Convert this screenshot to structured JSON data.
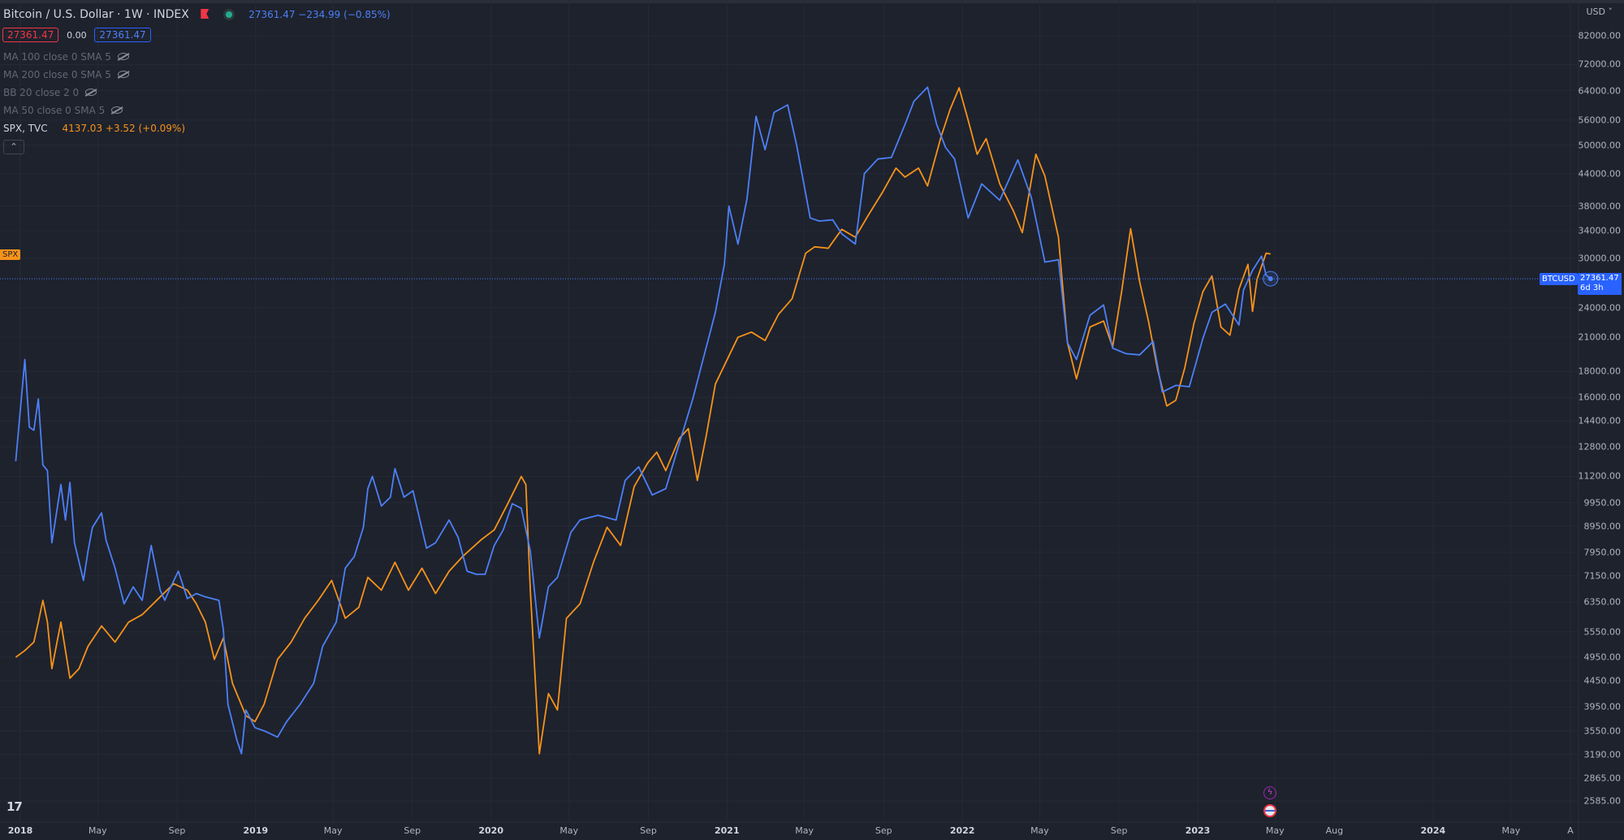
{
  "header": {
    "title": "Bitcoin / U.S. Dollar · 1W · INDEX",
    "price_change": "27361.47 −234.99 (−0.85%)",
    "bid": "27361.47",
    "spread": "0.00",
    "ask": "27361.47"
  },
  "indicators": [
    {
      "label": "MA 100 close 0 SMA 5"
    },
    {
      "label": "MA 200 close 0 SMA 5"
    },
    {
      "label": "BB 20 close 2 0"
    },
    {
      "label": "MA 50 close 0 SMA 5"
    }
  ],
  "compare": {
    "symbol": "SPX, TVC",
    "value": "4137.03 +3.52 (+0.09%)"
  },
  "collapse_glyph": "⌃",
  "currency": "USD",
  "tags": {
    "spx": "SPX",
    "btc_symbol": "BTCUSD",
    "btc_price": "27361.47",
    "btc_countdown": "6d 3h"
  },
  "logo": "17",
  "icons": {
    "bolt": "lightning-icon",
    "flag": "us-flag-icon"
  },
  "colors": {
    "background": "#1e222d",
    "btc": "#4c80f7",
    "spx": "#f7931a"
  },
  "chart_data": {
    "type": "line",
    "x_axis": {
      "ticks": [
        "2018",
        "May",
        "Sep",
        "2019",
        "May",
        "Sep",
        "2020",
        "May",
        "Sep",
        "2021",
        "May",
        "Sep",
        "2022",
        "May",
        "Sep",
        "2023",
        "May",
        "Aug",
        "2024",
        "May",
        "A"
      ]
    },
    "y_axis": {
      "scale": "log",
      "ticks": [
        82000,
        72000,
        64000,
        56000,
        50000,
        44000,
        38000,
        34000,
        30000,
        24000,
        21000,
        18000,
        16000,
        14400,
        12800,
        11200,
        9950,
        8950,
        7950,
        7150,
        6350,
        5550,
        4950,
        4450,
        3950,
        3550,
        3190,
        2865,
        2585
      ],
      "tick_labels": [
        "82000.00",
        "72000.00",
        "64000.00",
        "56000.00",
        "50000.00",
        "44000.00",
        "38000.00",
        "34000.00",
        "30000.00",
        "24000.00",
        "21000.00",
        "18000.00",
        "16000.00",
        "14400.00",
        "12800.00",
        "11200.00",
        "9950.00",
        "8950.00",
        "7950.00",
        "7150.00",
        "6350.00",
        "5550.00",
        "4950.00",
        "4450.00",
        "3950.00",
        "3550.00",
        "3190.00",
        "2865.00",
        "2585.00"
      ],
      "range": [
        2450,
        90000
      ],
      "position": "right"
    },
    "grid": true,
    "last_price": 27361.47,
    "series": [
      {
        "name": "BTCUSD",
        "color": "#4c80f7",
        "points": [
          [
            "2017-12-25",
            12000
          ],
          [
            "2018-01-08",
            19000
          ],
          [
            "2018-01-15",
            14000
          ],
          [
            "2018-01-22",
            13800
          ],
          [
            "2018-01-29",
            15900
          ],
          [
            "2018-02-05",
            11800
          ],
          [
            "2018-02-12",
            11500
          ],
          [
            "2018-02-19",
            8300
          ],
          [
            "2018-03-05",
            10800
          ],
          [
            "2018-03-12",
            9200
          ],
          [
            "2018-03-19",
            10900
          ],
          [
            "2018-03-26",
            8300
          ],
          [
            "2018-04-09",
            7000
          ],
          [
            "2018-04-16",
            8000
          ],
          [
            "2018-04-23",
            8900
          ],
          [
            "2018-05-07",
            9500
          ],
          [
            "2018-05-14",
            8400
          ],
          [
            "2018-05-28",
            7400
          ],
          [
            "2018-06-11",
            6300
          ],
          [
            "2018-06-25",
            6800
          ],
          [
            "2018-07-09",
            6400
          ],
          [
            "2018-07-23",
            8200
          ],
          [
            "2018-08-06",
            6700
          ],
          [
            "2018-08-13",
            6400
          ],
          [
            "2018-08-20",
            6700
          ],
          [
            "2018-09-03",
            7300
          ],
          [
            "2018-09-17",
            6450
          ],
          [
            "2018-10-01",
            6600
          ],
          [
            "2018-10-15",
            6500
          ],
          [
            "2018-11-05",
            6400
          ],
          [
            "2018-11-12",
            5600
          ],
          [
            "2018-11-19",
            4000
          ],
          [
            "2018-12-03",
            3400
          ],
          [
            "2018-12-10",
            3200
          ],
          [
            "2018-12-17",
            3900
          ],
          [
            "2018-12-31",
            3600
          ],
          [
            "2019-01-14",
            3550
          ],
          [
            "2019-02-04",
            3450
          ],
          [
            "2019-02-18",
            3700
          ],
          [
            "2019-03-11",
            4000
          ],
          [
            "2019-04-01",
            4400
          ],
          [
            "2019-04-15",
            5200
          ],
          [
            "2019-05-06",
            5800
          ],
          [
            "2019-05-20",
            7400
          ],
          [
            "2019-06-03",
            7800
          ],
          [
            "2019-06-17",
            8900
          ],
          [
            "2019-06-24",
            10600
          ],
          [
            "2019-07-01",
            11200
          ],
          [
            "2019-07-15",
            9800
          ],
          [
            "2019-07-29",
            10200
          ],
          [
            "2019-08-05",
            11600
          ],
          [
            "2019-08-19",
            10200
          ],
          [
            "2019-09-02",
            10500
          ],
          [
            "2019-09-23",
            8100
          ],
          [
            "2019-10-07",
            8300
          ],
          [
            "2019-10-28",
            9200
          ],
          [
            "2019-11-11",
            8500
          ],
          [
            "2019-11-25",
            7300
          ],
          [
            "2019-12-09",
            7200
          ],
          [
            "2019-12-23",
            7200
          ],
          [
            "2020-01-06",
            8200
          ],
          [
            "2020-01-20",
            8800
          ],
          [
            "2020-02-03",
            9900
          ],
          [
            "2020-02-17",
            9700
          ],
          [
            "2020-03-02",
            8000
          ],
          [
            "2020-03-16",
            5400
          ],
          [
            "2020-03-30",
            6800
          ],
          [
            "2020-04-13",
            7100
          ],
          [
            "2020-05-04",
            8700
          ],
          [
            "2020-05-18",
            9200
          ],
          [
            "2020-06-15",
            9400
          ],
          [
            "2020-07-13",
            9200
          ],
          [
            "2020-07-27",
            11000
          ],
          [
            "2020-08-17",
            11700
          ],
          [
            "2020-09-07",
            10300
          ],
          [
            "2020-09-28",
            10600
          ],
          [
            "2020-10-19",
            13000
          ],
          [
            "2020-11-09",
            15900
          ],
          [
            "2020-11-23",
            18600
          ],
          [
            "2020-12-14",
            23500
          ],
          [
            "2020-12-28",
            29200
          ],
          [
            "2021-01-04",
            38000
          ],
          [
            "2021-01-18",
            32000
          ],
          [
            "2021-02-01",
            39200
          ],
          [
            "2021-02-15",
            57000
          ],
          [
            "2021-03-01",
            49000
          ],
          [
            "2021-03-15",
            58000
          ],
          [
            "2021-04-05",
            60000
          ],
          [
            "2021-04-19",
            50000
          ],
          [
            "2021-05-10",
            36000
          ],
          [
            "2021-05-24",
            35500
          ],
          [
            "2021-06-14",
            35700
          ],
          [
            "2021-06-28",
            33500
          ],
          [
            "2021-07-19",
            32000
          ],
          [
            "2021-08-02",
            44000
          ],
          [
            "2021-08-23",
            47000
          ],
          [
            "2021-09-13",
            47300
          ],
          [
            "2021-10-04",
            54900
          ],
          [
            "2021-10-18",
            61000
          ],
          [
            "2021-11-08",
            65000
          ],
          [
            "2021-11-22",
            55000
          ],
          [
            "2021-12-06",
            49500
          ],
          [
            "2021-12-20",
            47000
          ],
          [
            "2022-01-10",
            36000
          ],
          [
            "2022-01-31",
            42000
          ],
          [
            "2022-02-28",
            39000
          ],
          [
            "2022-03-28",
            46800
          ],
          [
            "2022-04-18",
            39500
          ],
          [
            "2022-05-09",
            29500
          ],
          [
            "2022-05-30",
            29800
          ],
          [
            "2022-06-13",
            20500
          ],
          [
            "2022-06-27",
            19000
          ],
          [
            "2022-07-18",
            23200
          ],
          [
            "2022-08-08",
            24300
          ],
          [
            "2022-08-22",
            20000
          ],
          [
            "2022-09-12",
            19500
          ],
          [
            "2022-10-03",
            19400
          ],
          [
            "2022-10-24",
            20600
          ],
          [
            "2022-11-07",
            16400
          ],
          [
            "2022-11-28",
            16900
          ],
          [
            "2022-12-19",
            16800
          ],
          [
            "2023-01-09",
            20900
          ],
          [
            "2023-01-23",
            23500
          ],
          [
            "2023-02-13",
            24400
          ],
          [
            "2023-03-06",
            22200
          ],
          [
            "2023-03-13",
            26000
          ],
          [
            "2023-03-27",
            28400
          ],
          [
            "2023-04-10",
            30300
          ],
          [
            "2023-04-17",
            27800
          ],
          [
            "2023-04-24",
            27361
          ]
        ]
      },
      {
        "name": "SPX",
        "color": "#f7931a",
        "points": [
          [
            "2017-12-25",
            4950
          ],
          [
            "2018-01-08",
            5100
          ],
          [
            "2018-01-22",
            5300
          ],
          [
            "2018-01-29",
            5800
          ],
          [
            "2018-02-05",
            6400
          ],
          [
            "2018-02-12",
            5800
          ],
          [
            "2018-02-19",
            4700
          ],
          [
            "2018-03-05",
            5800
          ],
          [
            "2018-03-19",
            4500
          ],
          [
            "2018-04-02",
            4700
          ],
          [
            "2018-04-16",
            5200
          ],
          [
            "2018-05-07",
            5700
          ],
          [
            "2018-05-28",
            5300
          ],
          [
            "2018-06-18",
            5800
          ],
          [
            "2018-07-09",
            6000
          ],
          [
            "2018-08-06",
            6500
          ],
          [
            "2018-08-27",
            6900
          ],
          [
            "2018-09-17",
            6700
          ],
          [
            "2018-10-01",
            6300
          ],
          [
            "2018-10-15",
            5800
          ],
          [
            "2018-10-29",
            4900
          ],
          [
            "2018-11-12",
            5400
          ],
          [
            "2018-11-26",
            4400
          ],
          [
            "2018-12-17",
            3800
          ],
          [
            "2018-12-31",
            3700
          ],
          [
            "2019-01-14",
            4000
          ],
          [
            "2019-02-04",
            4900
          ],
          [
            "2019-02-25",
            5300
          ],
          [
            "2019-03-18",
            5900
          ],
          [
            "2019-04-08",
            6400
          ],
          [
            "2019-04-29",
            7000
          ],
          [
            "2019-05-20",
            5900
          ],
          [
            "2019-06-10",
            6200
          ],
          [
            "2019-06-24",
            7100
          ],
          [
            "2019-07-15",
            6700
          ],
          [
            "2019-08-05",
            7600
          ],
          [
            "2019-08-26",
            6700
          ],
          [
            "2019-09-16",
            7400
          ],
          [
            "2019-10-07",
            6600
          ],
          [
            "2019-10-28",
            7300
          ],
          [
            "2019-11-18",
            7800
          ],
          [
            "2019-12-16",
            8400
          ],
          [
            "2020-01-06",
            8800
          ],
          [
            "2020-01-27",
            9900
          ],
          [
            "2020-02-17",
            11200
          ],
          [
            "2020-02-24",
            10800
          ],
          [
            "2020-03-02",
            6700
          ],
          [
            "2020-03-16",
            3200
          ],
          [
            "2020-03-30",
            4200
          ],
          [
            "2020-04-13",
            3900
          ],
          [
            "2020-04-27",
            5900
          ],
          [
            "2020-05-18",
            6300
          ],
          [
            "2020-06-08",
            7600
          ],
          [
            "2020-06-29",
            8900
          ],
          [
            "2020-07-20",
            8200
          ],
          [
            "2020-08-10",
            10700
          ],
          [
            "2020-08-31",
            11900
          ],
          [
            "2020-09-14",
            12500
          ],
          [
            "2020-09-28",
            11500
          ],
          [
            "2020-10-19",
            13300
          ],
          [
            "2020-11-02",
            13900
          ],
          [
            "2020-11-16",
            11000
          ],
          [
            "2020-11-30",
            13500
          ],
          [
            "2020-12-14",
            17000
          ],
          [
            "2020-12-28",
            18500
          ],
          [
            "2021-01-18",
            21000
          ],
          [
            "2021-02-08",
            21500
          ],
          [
            "2021-03-01",
            20700
          ],
          [
            "2021-03-22",
            23300
          ],
          [
            "2021-04-12",
            25000
          ],
          [
            "2021-05-03",
            30700
          ],
          [
            "2021-05-17",
            31600
          ],
          [
            "2021-06-07",
            31400
          ],
          [
            "2021-06-28",
            34200
          ],
          [
            "2021-07-19",
            33000
          ],
          [
            "2021-08-09",
            36600
          ],
          [
            "2021-08-30",
            40400
          ],
          [
            "2021-09-20",
            45100
          ],
          [
            "2021-10-04",
            43300
          ],
          [
            "2021-10-25",
            45100
          ],
          [
            "2021-11-08",
            41600
          ],
          [
            "2021-11-29",
            52000
          ],
          [
            "2021-12-13",
            58800
          ],
          [
            "2021-12-27",
            64800
          ],
          [
            "2022-01-10",
            56000
          ],
          [
            "2022-01-24",
            48000
          ],
          [
            "2022-02-07",
            51500
          ],
          [
            "2022-02-28",
            42000
          ],
          [
            "2022-03-21",
            37200
          ],
          [
            "2022-04-04",
            33700
          ],
          [
            "2022-04-25",
            48000
          ],
          [
            "2022-05-09",
            43500
          ],
          [
            "2022-05-30",
            33000
          ],
          [
            "2022-06-13",
            20500
          ],
          [
            "2022-06-27",
            17400
          ],
          [
            "2022-07-18",
            22000
          ],
          [
            "2022-08-08",
            22600
          ],
          [
            "2022-08-22",
            20100
          ],
          [
            "2022-09-05",
            25800
          ],
          [
            "2022-09-19",
            34300
          ],
          [
            "2022-10-03",
            27000
          ],
          [
            "2022-10-17",
            22500
          ],
          [
            "2022-10-31",
            18100
          ],
          [
            "2022-11-14",
            15400
          ],
          [
            "2022-11-28",
            15800
          ],
          [
            "2022-12-12",
            18300
          ],
          [
            "2022-12-26",
            22300
          ],
          [
            "2023-01-09",
            25800
          ],
          [
            "2023-01-23",
            27700
          ],
          [
            "2023-02-06",
            22000
          ],
          [
            "2023-02-20",
            21200
          ],
          [
            "2023-03-06",
            26100
          ],
          [
            "2023-03-20",
            29200
          ],
          [
            "2023-03-27",
            23600
          ],
          [
            "2023-04-03",
            27300
          ],
          [
            "2023-04-17",
            30700
          ],
          [
            "2023-04-24",
            30600
          ]
        ]
      }
    ]
  }
}
